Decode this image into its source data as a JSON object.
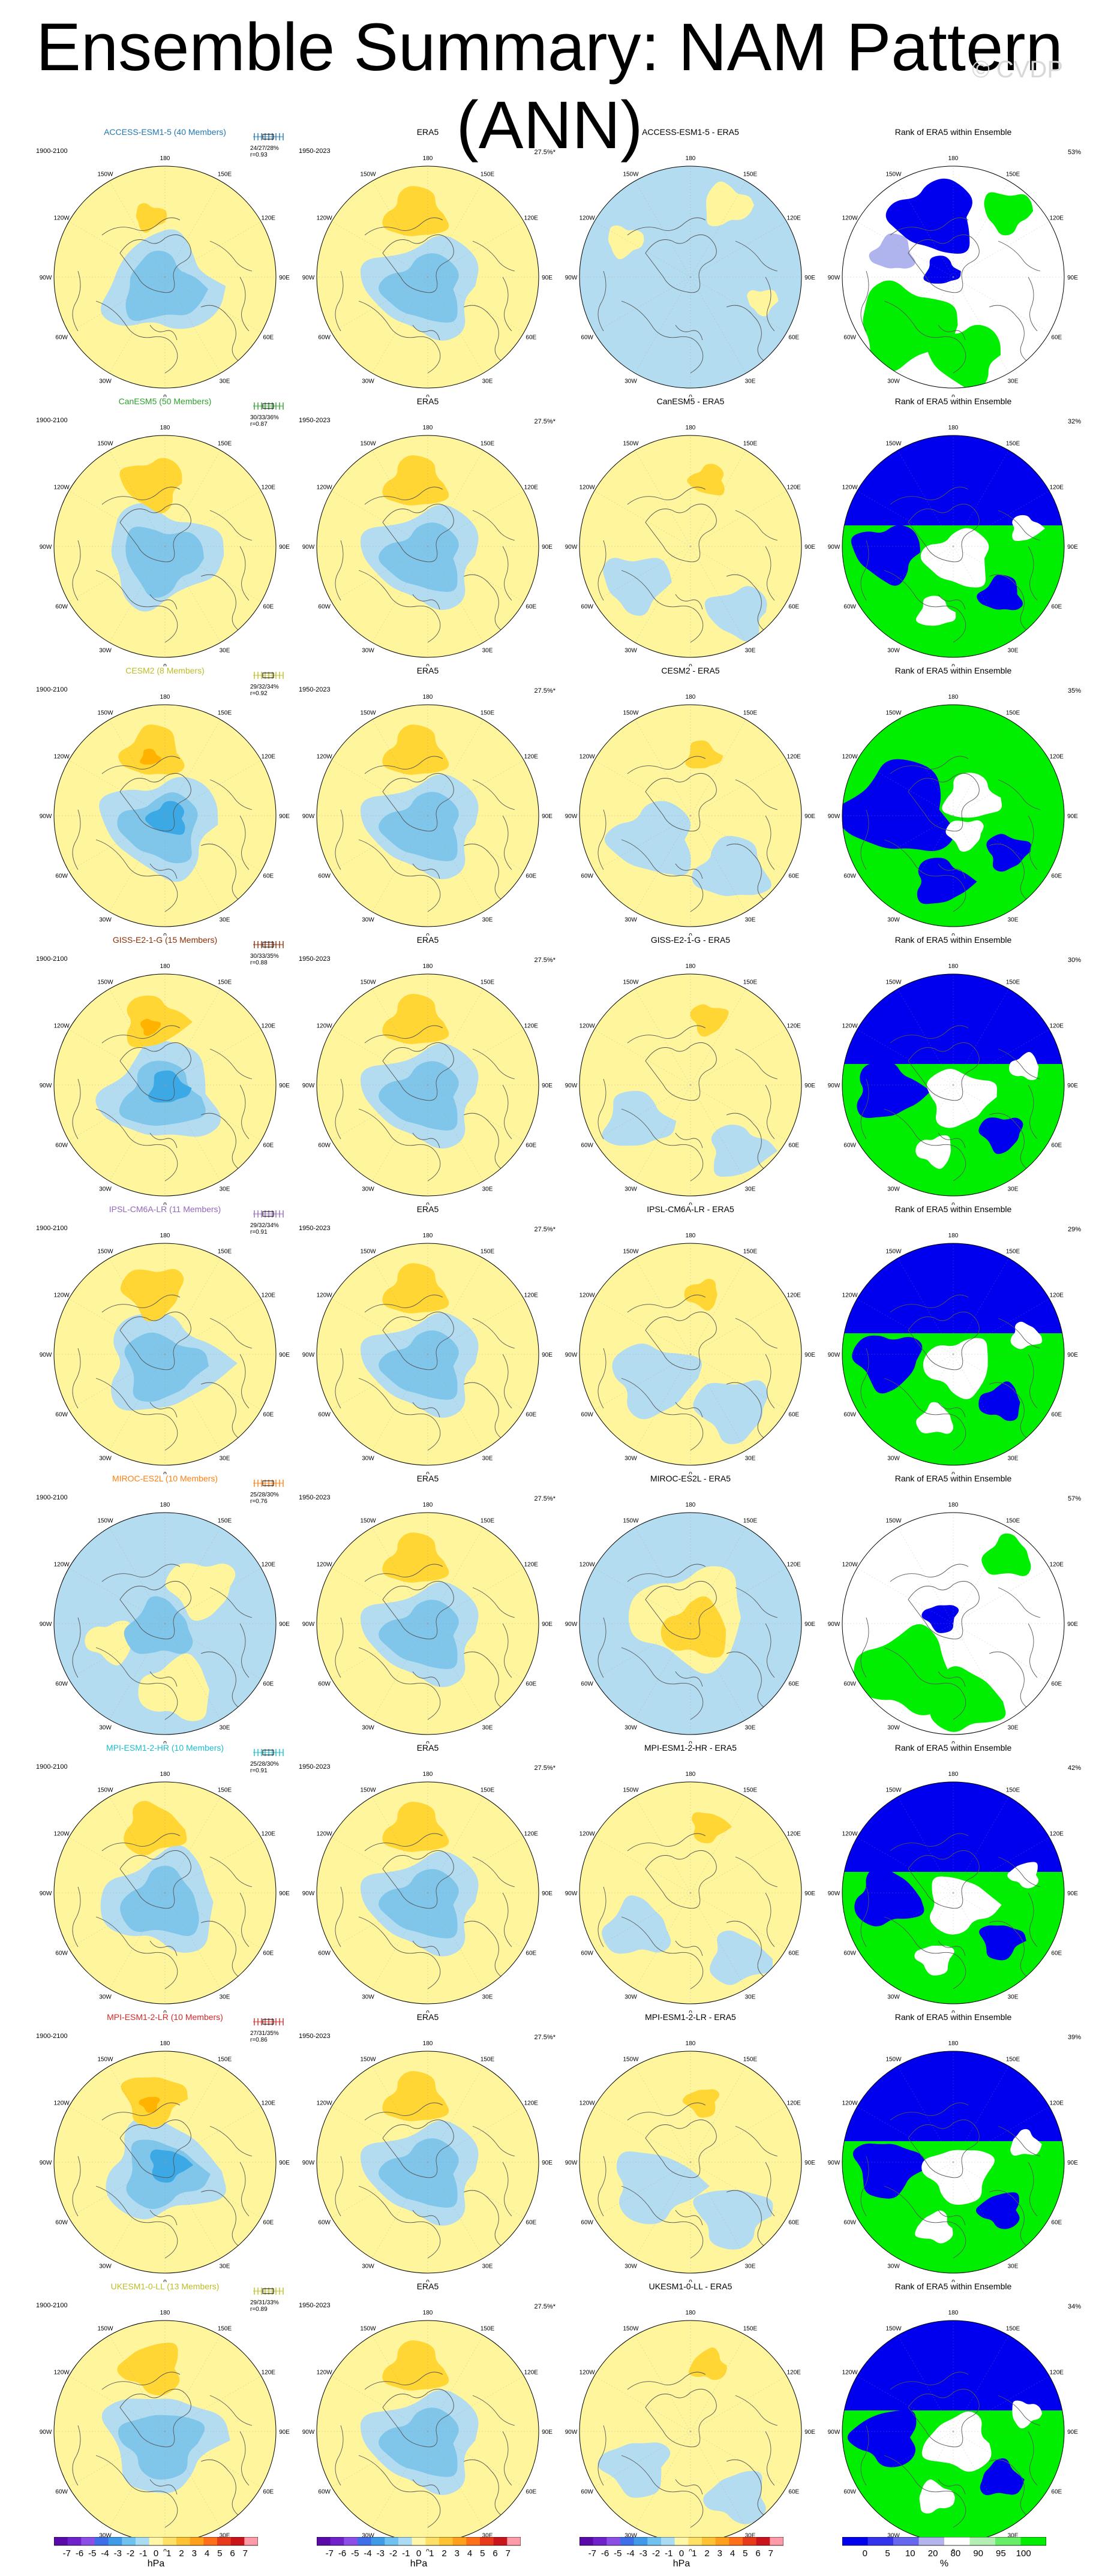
{
  "title": "Ensemble Summary: NAM Pattern (ANN)",
  "watermark": "© CVDP",
  "column_labels": {
    "obs": "ERA5",
    "rank": "Rank of ERA5 within Ensemble"
  },
  "periods": {
    "model": "1900-2100",
    "obs": "1950-2023"
  },
  "obs_percent": "27.5%*",
  "lon_labels": [
    "180",
    "150E",
    "120E",
    "90E",
    "60E",
    "30E",
    "0",
    "30W",
    "60W",
    "90W",
    "120W",
    "150W"
  ],
  "colors": {
    "model_title_colors": [
      "#1f77b4",
      "#2ca02c",
      "#bcbd22",
      "#8c2d04",
      "#9467bd",
      "#ff7f0e",
      "#17becf",
      "#d62728",
      "#bcbd22"
    ],
    "pos_light": "#fff59d",
    "pos_mid": "#ffd633",
    "pos_dark": "#ffb300",
    "neg_light": "#b3dcf0",
    "neg_mid": "#7fc6ea",
    "neg_dark": "#3aa9e6",
    "rank_low": "#0000ee",
    "rank_lowmid": "#b0b4ee",
    "rank_high": "#00ee00"
  },
  "rows": [
    {
      "name": "ACCESS-ESM1-5 (40 Members)",
      "diff_title": "ACCESS-ESM1-5 - ERA5",
      "stats": [
        "24/27/28%",
        "r=0.93"
      ],
      "rank_pct": "53%",
      "pattern": "weak",
      "diff": "blue",
      "rank": "mixedA"
    },
    {
      "name": "CanESM5 (50 Members)",
      "diff_title": "CanESM5 - ERA5",
      "stats": [
        "30/33/36%",
        "r=0.87"
      ],
      "rank_pct": "32%",
      "pattern": "strong",
      "diff": "yellow",
      "rank": "blue"
    },
    {
      "name": "CESM2 (8 Members)",
      "diff_title": "CESM2 - ERA5",
      "stats": [
        "29/32/34%",
        "r=0.92"
      ],
      "rank_pct": "35%",
      "pattern": "vstrong",
      "diff": "mixed",
      "rank": "green"
    },
    {
      "name": "GISS-E2-1-G (15 Members)",
      "diff_title": "GISS-E2-1-G - ERA5",
      "stats": [
        "30/33/35%",
        "r=0.88"
      ],
      "rank_pct": "30%",
      "pattern": "vstrong",
      "diff": "yellow",
      "rank": "blue"
    },
    {
      "name": "IPSL-CM6A-LR (11 Members)",
      "diff_title": "IPSL-CM6A-LR - ERA5",
      "stats": [
        "29/32/34%",
        "r=0.91"
      ],
      "rank_pct": "29%",
      "pattern": "strong",
      "diff": "mixed",
      "rank": "blue"
    },
    {
      "name": "MIROC-ES2L (10 Members)",
      "diff_title": "MIROC-ES2L - ERA5",
      "stats": [
        "25/28/30%",
        "r=0.76"
      ],
      "rank_pct": "57%",
      "pattern": "weakblue",
      "diff": "center",
      "rank": "mixedB"
    },
    {
      "name": "MPI-ESM1-2-HR (10 Members)",
      "diff_title": "MPI-ESM1-2-HR - ERA5",
      "stats": [
        "25/28/30%",
        "r=0.91"
      ],
      "rank_pct": "42%",
      "pattern": "strong",
      "diff": "yellow",
      "rank": "blue"
    },
    {
      "name": "MPI-ESM1-2-LR (10 Members)",
      "diff_title": "MPI-ESM1-2-LR - ERA5",
      "stats": [
        "27/31/35%",
        "r=0.86"
      ],
      "rank_pct": "39%",
      "pattern": "vstrong",
      "diff": "mixed",
      "rank": "blue"
    },
    {
      "name": "UKESM1-0-LL (13 Members)",
      "diff_title": "UKESM1-0-LL - ERA5",
      "stats": [
        "29/31/33%",
        "r=0.89"
      ],
      "rank_pct": "34%",
      "pattern": "strong",
      "diff": "yellow",
      "rank": "blue"
    }
  ],
  "colorbars": {
    "hpa_ticks": [
      "-7",
      "-6",
      "-5",
      "-4",
      "-3",
      "-2",
      "-1",
      "0",
      "1",
      "2",
      "3",
      "4",
      "5",
      "6",
      "7"
    ],
    "hpa_unit": "hPa",
    "hpa_colors": [
      "#5a0aa6",
      "#6f22c9",
      "#8c4fe6",
      "#3f6fe8",
      "#3f9be8",
      "#6fc1ef",
      "#a9dcf2",
      "#fff6a8",
      "#ffe066",
      "#ffc233",
      "#ff9f1a",
      "#ff6f1a",
      "#e83a1a",
      "#c8141a",
      "#ff9aa8"
    ],
    "rank_ticks": [
      "0",
      "5",
      "10",
      "20",
      "80",
      "90",
      "95",
      "100"
    ],
    "rank_unit": "%",
    "rank_colors": [
      "#0000ee",
      "#3333ee",
      "#6666ee",
      "#b3b3ee",
      "#ffffff",
      "#b3eeb3",
      "#66ee66",
      "#00ee00"
    ]
  }
}
